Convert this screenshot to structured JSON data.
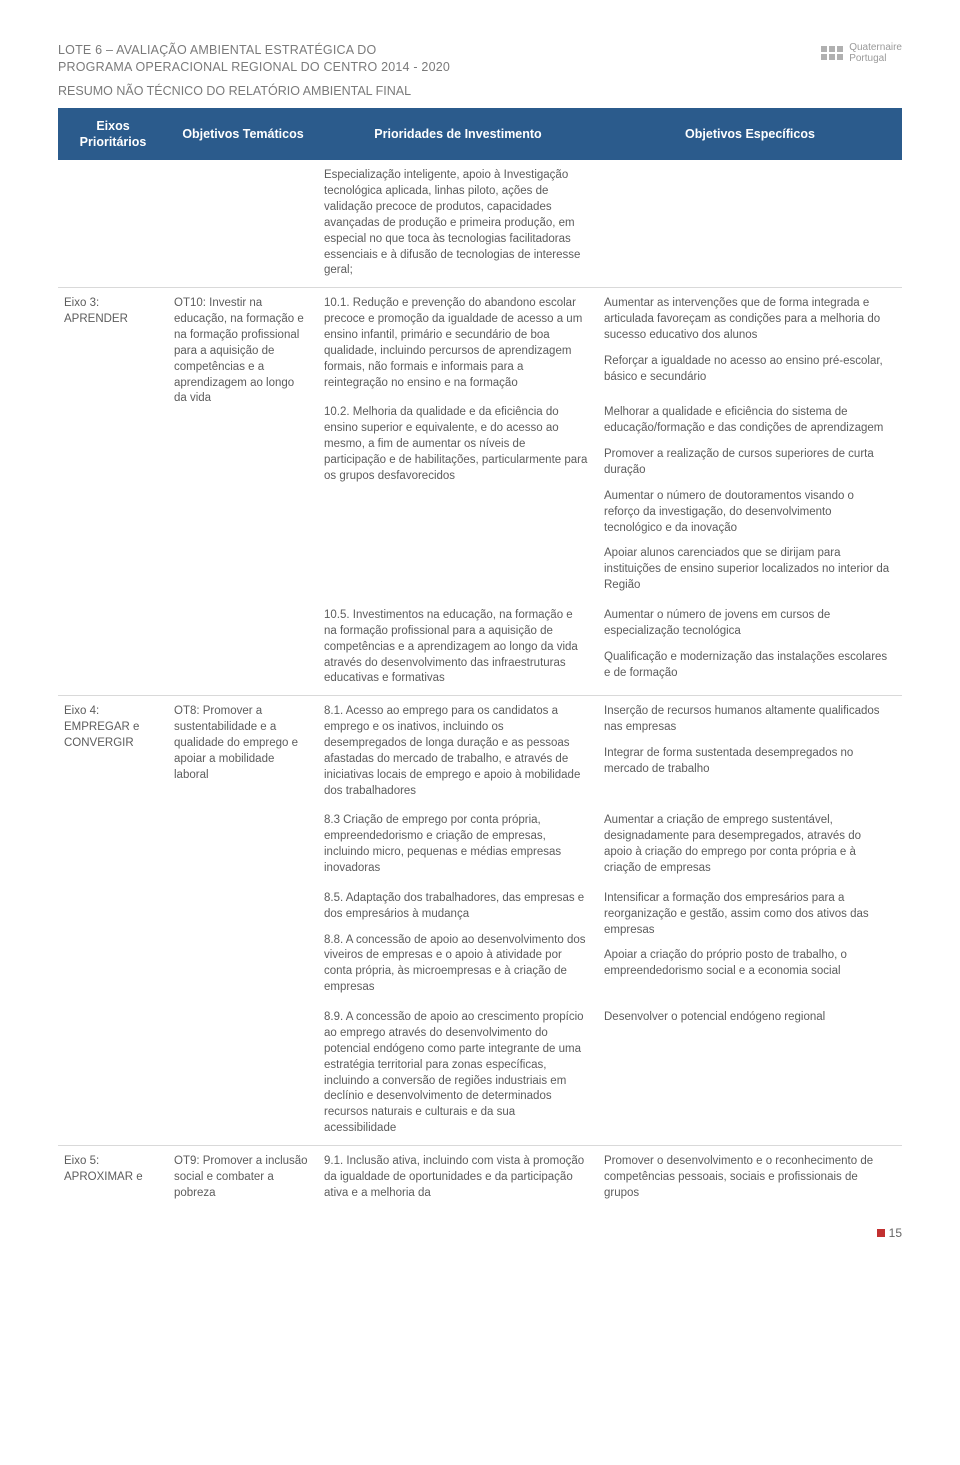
{
  "header": {
    "title_line1": "LOTE 6 – AVALIAÇÃO AMBIENTAL ESTRATÉGICA DO",
    "title_line2": "PROGRAMA OPERACIONAL REGIONAL DO CENTRO 2014 - 2020",
    "subtitle": "RESUMO NÃO TÉCNICO DO RELATÓRIO AMBIENTAL FINAL",
    "logo_text1": "Quaternaire",
    "logo_text2": "Portugal"
  },
  "tableHeaders": {
    "c1": "Eixos Prioritários",
    "c2": "Objetivos Temáticos",
    "c3": "Prioridades de Investimento",
    "c4": "Objetivos Específicos"
  },
  "rows": {
    "r0": {
      "pri": "Especialização inteligente, apoio à Investigação tecnológica aplicada, linhas piloto, ações de validação precoce de produtos, capacidades avançadas de produção e primeira produção, em especial no que toca às tecnologias facilitadoras essenciais e à difusão de tecnologias de interesse geral;"
    },
    "eixo3": {
      "axis": "Eixo 3: APRENDER",
      "ot": "OT10: Investir na educação, na formação e na formação profissional para a aquisição de competências e a aprendizagem ao longo da vida",
      "p101": "10.1. Redução e prevenção do abandono escolar precoce e promoção da igualdade de acesso a um ensino infantil, primário e secundário de boa qualidade, incluindo percursos de aprendizagem formais, não formais e informais para a reintegração no ensino e na formação",
      "p102": "10.2. Melhoria da qualidade e da eficiência do ensino superior e equivalente, e do acesso ao mesmo, a fim de aumentar os níveis de participação e de habilitações, particularmente para os grupos desfavorecidos",
      "p105": "10.5. Investimentos na educação, na formação e na formação profissional para a aquisição de competências e a aprendizagem ao longo da vida através do desenvolvimento das infraestruturas educativas e formativas",
      "obj1": "Aumentar as intervenções que de forma integrada e articulada favoreçam as condições para a melhoria do sucesso educativo dos alunos",
      "obj2": "Reforçar a igualdade no acesso ao ensino pré-escolar, básico e secundário",
      "obj3": "Melhorar a qualidade e eficiência do sistema de educação/formação e das condições de aprendizagem",
      "obj4": "Promover a realização de cursos superiores de curta duração",
      "obj5": "Aumentar o número de doutoramentos visando o reforço da investigação, do desenvolvimento tecnológico e da inovação",
      "obj6": "Apoiar alunos carenciados que se dirijam para instituições de ensino superior localizados no interior da Região",
      "obj7": "Aumentar o número de jovens em cursos de especialização tecnológica",
      "obj8": "Qualificação e modernização das instalações escolares e de formação"
    },
    "eixo4": {
      "axis": "Eixo 4: EMPREGAR e CONVERGIR",
      "ot": "OT8: Promover a sustentabilidade e a qualidade do emprego e apoiar a mobilidade laboral",
      "p81": "8.1. Acesso ao emprego para os candidatos a emprego e os inativos, incluindo os desempregados de longa duração e as pessoas afastadas do mercado de trabalho, e através de iniciativas locais de emprego e apoio à mobilidade dos trabalhadores",
      "p83": "8.3 Criação de emprego por conta própria, empreendedorismo e criação de empresas, incluindo micro, pequenas e médias empresas inovadoras",
      "p85": "8.5. Adaptação dos trabalhadores, das empresas e dos empresários à mudança",
      "p88": "8.8. A concessão de apoio ao desenvolvimento dos viveiros de empresas e o apoio à atividade por conta própria, às microempresas e à criação de empresas",
      "p89": "8.9. A concessão de apoio ao crescimento propício ao emprego através do desenvolvimento do potencial endógeno como parte integrante de uma estratégia territorial para zonas específicas, incluindo a conversão de regiões industriais em declínio e desenvolvimento de determinados recursos naturais e culturais e da sua acessibilidade",
      "obj1": "Inserção de recursos humanos altamente qualificados nas empresas",
      "obj2": "Integrar de forma sustentada desempregados no mercado de trabalho",
      "obj3": "Aumentar a criação de emprego sustentável, designadamente para desempregados, através do apoio à criação do emprego por conta própria e à criação de empresas",
      "obj4": "Intensificar a formação dos empresários para a reorganização e gestão, assim como dos ativos das empresas",
      "obj5": "Apoiar a criação do próprio posto de trabalho, o empreendedorismo social e a economia social",
      "obj6": "Desenvolver o potencial endógeno regional"
    },
    "eixo5": {
      "axis": "Eixo 5: APROXIMAR e",
      "ot": "OT9: Promover a inclusão social e combater a pobreza",
      "p91": "9.1. Inclusão ativa, incluindo com vista à promoção da igualdade de oportunidades e da participação ativa e a melhoria da",
      "obj1": "Promover o desenvolvimento e o reconhecimento de competências pessoais, sociais e profissionais de grupos"
    }
  },
  "footer": {
    "page": "15"
  },
  "colors": {
    "header_bg": "#2b5b8c",
    "text": "#5c5c5c",
    "border": "#d9d9d9",
    "accent": "#c23030"
  }
}
